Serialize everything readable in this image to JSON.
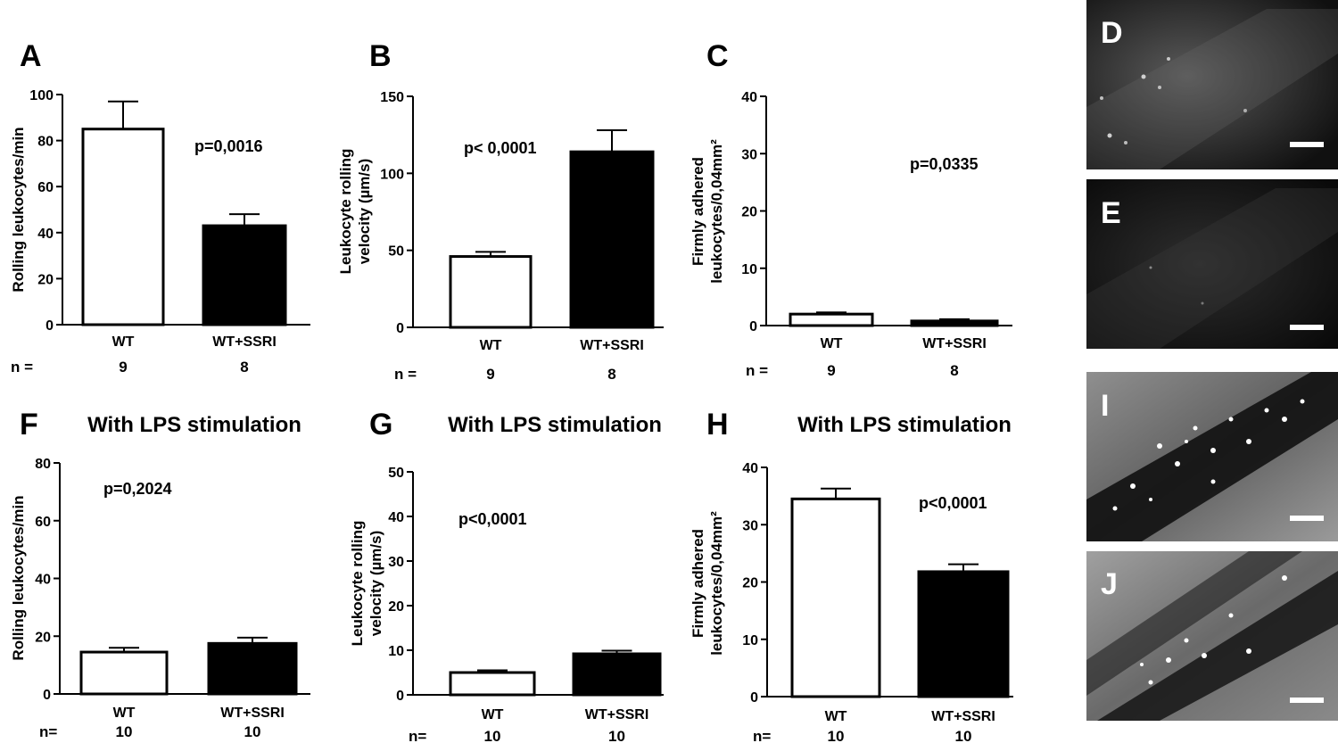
{
  "chart_data": [
    {
      "panel": "A",
      "type": "bar",
      "title": "",
      "ylabel": "Rolling leukocytes/min",
      "ylim": [
        0,
        100
      ],
      "yticks": [
        0,
        20,
        40,
        60,
        80,
        100
      ],
      "categories": [
        "WT",
        "WT+SSRI"
      ],
      "values": [
        85,
        43
      ],
      "errors": [
        12,
        5
      ],
      "fills": [
        "#ffffff",
        "#000000"
      ],
      "n_label": "n =",
      "n": [
        "9",
        "8"
      ],
      "pvalue": "p=0,0016"
    },
    {
      "panel": "B",
      "type": "bar",
      "title": "",
      "ylabel_lines": [
        "Leukocyte rolling",
        "velocity (µm/s)"
      ],
      "ylim": [
        0,
        150
      ],
      "yticks": [
        0,
        50,
        100,
        150
      ],
      "categories": [
        "WT",
        "WT+SSRI"
      ],
      "values": [
        46,
        114
      ],
      "errors": [
        3,
        14
      ],
      "fills": [
        "#ffffff",
        "#000000"
      ],
      "n_label": "n =",
      "n": [
        "9",
        "8"
      ],
      "pvalue": "p< 0,0001"
    },
    {
      "panel": "C",
      "type": "bar",
      "title": "",
      "ylabel_lines": [
        "Firmly adhered",
        "leukocytes/0,04mm²"
      ],
      "ylim": [
        0,
        40
      ],
      "yticks": [
        0,
        10,
        20,
        30,
        40
      ],
      "categories": [
        "WT",
        "WT+SSRI"
      ],
      "values": [
        2,
        0.8
      ],
      "errors": [
        0.3,
        0.3
      ],
      "fills": [
        "#ffffff",
        "#000000"
      ],
      "n_label": "n =",
      "n": [
        "9",
        "8"
      ],
      "pvalue": "p=0,0335"
    },
    {
      "panel": "F",
      "type": "bar",
      "title": "With LPS stimulation",
      "ylabel": "Rolling leukocytes/min",
      "ylim": [
        0,
        80
      ],
      "yticks": [
        0,
        20,
        40,
        60,
        80
      ],
      "categories": [
        "WT",
        "WT+SSRI"
      ],
      "values": [
        14.5,
        17.5
      ],
      "errors": [
        1.5,
        2
      ],
      "fills": [
        "#ffffff",
        "#000000"
      ],
      "n_label": "n=",
      "n": [
        "10",
        "10"
      ],
      "pvalue": "p=0,2024"
    },
    {
      "panel": "G",
      "type": "bar",
      "title": "With LPS stimulation",
      "ylabel_lines": [
        "Leukocyte rolling",
        "velocity (µm/s)"
      ],
      "ylim": [
        0,
        50
      ],
      "yticks": [
        0,
        10,
        20,
        30,
        40,
        50
      ],
      "categories": [
        "WT",
        "WT+SSRI"
      ],
      "values": [
        5,
        9.2
      ],
      "errors": [
        0.5,
        0.7
      ],
      "fills": [
        "#ffffff",
        "#000000"
      ],
      "n_label": "n=",
      "n": [
        "10",
        "10"
      ],
      "pvalue": "p<0,0001"
    },
    {
      "panel": "H",
      "type": "bar",
      "title": "With LPS stimulation",
      "ylabel_lines": [
        "Firmly adhered",
        "leukocytes/0,04mm²"
      ],
      "ylim": [
        0,
        40
      ],
      "yticks": [
        0,
        10,
        20,
        30,
        40
      ],
      "categories": [
        "WT",
        "WT+SSRI"
      ],
      "values": [
        34.5,
        21.8
      ],
      "errors": [
        1.8,
        1.3
      ],
      "fills": [
        "#ffffff",
        "#000000"
      ],
      "n_label": "n=",
      "n": [
        "10",
        "10"
      ],
      "pvalue": "p<0,0001"
    }
  ],
  "micrographs": [
    {
      "label": "D",
      "brightness": "dim"
    },
    {
      "label": "E",
      "brightness": "very dim"
    },
    {
      "label": "I",
      "brightness": "bright"
    },
    {
      "label": "J",
      "brightness": "bright"
    }
  ]
}
